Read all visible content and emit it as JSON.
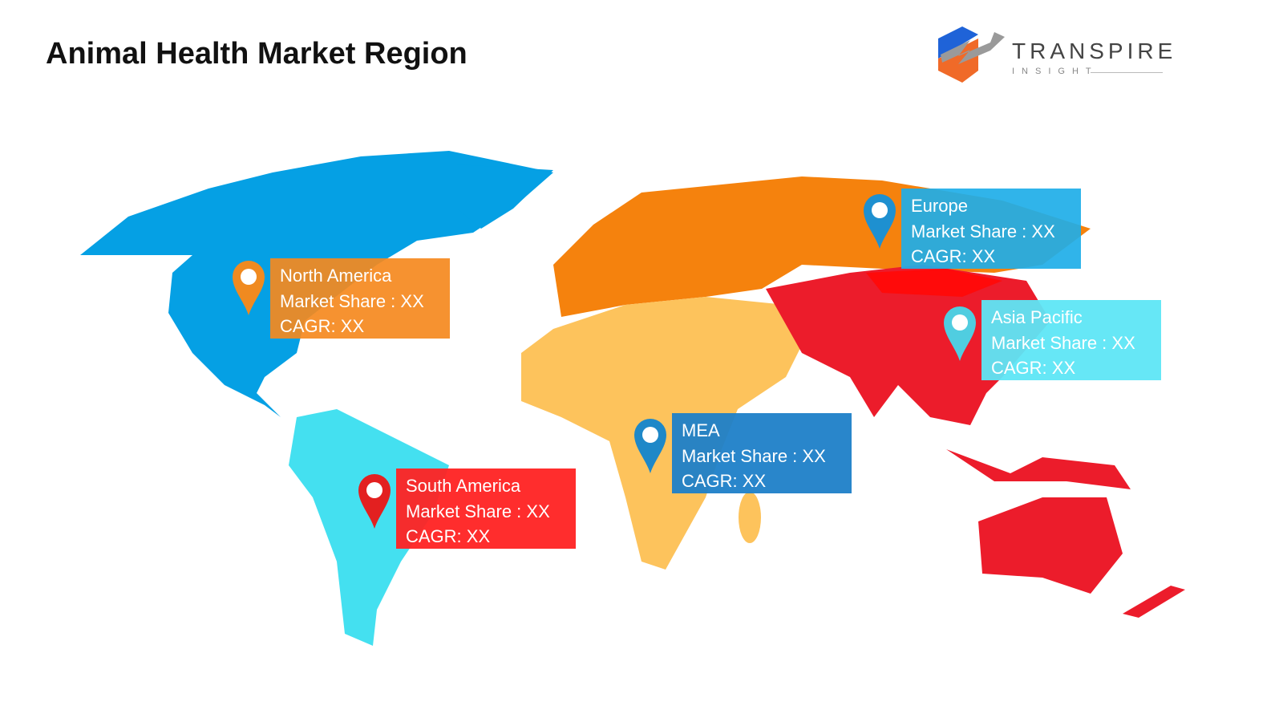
{
  "title": "Animal Health Market Region",
  "logo": {
    "name": "TRANSPIRE",
    "tagline": "INSIGHT"
  },
  "colors": {
    "north_america": "#05a0e4",
    "south_america": "#44e0f0",
    "europe": "#f5820d",
    "mea": "#fdc35c",
    "asia_pacific": "#ec1c2b"
  },
  "regions": [
    {
      "name": "North America",
      "market_share": "Market Share : XX",
      "cagr": "CAGR: XX",
      "box_color": "#f5891e",
      "pin_color": "#f08a20"
    },
    {
      "name": "Europe",
      "market_share": "Market Share : XX",
      "cagr": "CAGR: XX",
      "box_color": "#1eaee8",
      "pin_color": "#1e90d0"
    },
    {
      "name": "Asia Pacific",
      "market_share": "Market Share : XX",
      "cagr": "CAGR: XX",
      "box_color": "#5ee6f5",
      "pin_color": "#50cde0"
    },
    {
      "name": "MEA",
      "market_share": "Market Share : XX",
      "cagr": "CAGR: XX",
      "box_color": "#1e80c8",
      "pin_color": "#1e88c8"
    },
    {
      "name": "South America",
      "market_share": "Market Share : XX",
      "cagr": "CAGR: XX",
      "box_color": "#ff2222",
      "pin_color": "#e32020"
    }
  ]
}
